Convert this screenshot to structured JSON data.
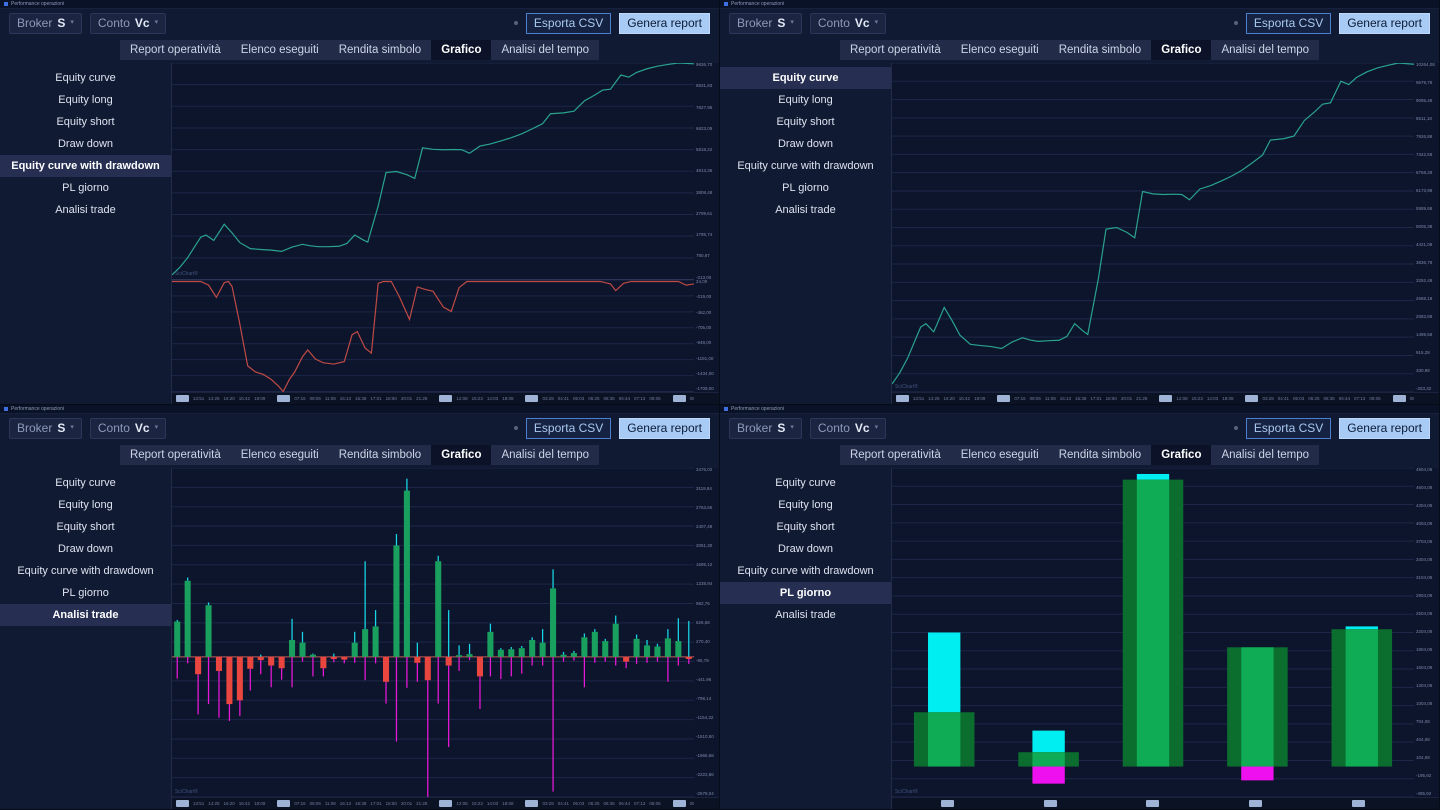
{
  "shared": {
    "window_title": "Performance operazioni",
    "watermark": "SciChart®",
    "toolbar": {
      "broker_label": "Broker",
      "broker_value": "S",
      "conto_label": "Conto",
      "conto_value": "Vc",
      "esporta_csv": "Esporta CSV",
      "genera_report": "Genera report"
    },
    "tabs": [
      "Report operatività",
      "Elenco eseguiti",
      "Rendita simbolo",
      "Grafico",
      "Analisi del tempo"
    ],
    "active_tab": "Grafico",
    "sidebar_items": [
      "Equity curve",
      "Equity long",
      "Equity short",
      "Draw down",
      "Equity curve with drawdown",
      "PL giorno",
      "Analisi trade"
    ],
    "xaxis_groups": [
      {
        "times": [
          "13:51",
          "14:25",
          "16:20",
          "16:42",
          "18:09"
        ]
      },
      {
        "times": [
          "07:16",
          "08:06",
          "11:08",
          "16:13",
          "16:38",
          "17:01",
          "18:50",
          "20:01",
          "21:28"
        ]
      },
      {
        "times": [
          "12:08",
          "15:23",
          "14:03",
          "18:08"
        ]
      },
      {
        "times": [
          "03:28",
          "04:41",
          "06:03",
          "06:25",
          "06:36",
          "06:44",
          "07:13",
          "08:06"
        ]
      },
      {
        "times": [
          "05:45",
          "06:16",
          "06:20",
          "06:11",
          "07:11",
          "07:44",
          "06:08",
          "08:20",
          "08:43",
          "09:00",
          "09:04"
        ]
      }
    ]
  },
  "quadrants": [
    {
      "selected_item": "Equity curve with drawdown"
    },
    {
      "selected_item": "Equity curve"
    },
    {
      "selected_item": "Analisi trade"
    },
    {
      "selected_item": "PL giorno"
    }
  ],
  "chart_data": [
    {
      "type": "line",
      "title": "Equity curve with drawdown",
      "xaxis": "groups",
      "panels": [
        {
          "name": "equity",
          "height": 0.66,
          "color": "#2aa38f",
          "ylim": [
            -213,
            9837
          ],
          "yticks": [
            "9836,70",
            "8831,83",
            "7827,96",
            "6823,09",
            "5818,22",
            "4813,35",
            "3808,48",
            "2799,61",
            "1795,74",
            "790,87",
            "-213,00"
          ],
          "points": [
            [
              0,
              0
            ],
            [
              1.5,
              350
            ],
            [
              3,
              800
            ],
            [
              5.5,
              1750
            ],
            [
              6.5,
              1850
            ],
            [
              8,
              1600
            ],
            [
              10,
              2350
            ],
            [
              11.5,
              1950
            ],
            [
              13,
              1500
            ],
            [
              15,
              1220
            ],
            [
              17,
              1180
            ],
            [
              19,
              1150
            ],
            [
              21,
              1090
            ],
            [
              23,
              1290
            ],
            [
              25,
              1420
            ],
            [
              26.5,
              1350
            ],
            [
              28,
              1310
            ],
            [
              30,
              1310
            ],
            [
              32,
              1330
            ],
            [
              33.5,
              1460
            ],
            [
              35,
              1850
            ],
            [
              36.5,
              1640
            ],
            [
              37.5,
              1520
            ],
            [
              39.5,
              3200
            ],
            [
              41,
              4750
            ],
            [
              43,
              4800
            ],
            [
              45,
              4650
            ],
            [
              46.5,
              4480
            ],
            [
              48,
              5900
            ],
            [
              50,
              5830
            ],
            [
              52,
              5810
            ],
            [
              54,
              5820
            ],
            [
              55.5,
              5810
            ],
            [
              57,
              5650
            ],
            [
              59,
              5980
            ],
            [
              61,
              6080
            ],
            [
              63,
              6220
            ],
            [
              65,
              6370
            ],
            [
              67,
              6550
            ],
            [
              69,
              6780
            ],
            [
              71,
              7020
            ],
            [
              72.5,
              7480
            ],
            [
              75,
              7520
            ],
            [
              77,
              7600
            ],
            [
              79,
              8080
            ],
            [
              81,
              8350
            ],
            [
              82.5,
              8580
            ],
            [
              84,
              8620
            ],
            [
              86,
              9280
            ],
            [
              87.5,
              9180
            ],
            [
              89,
              9400
            ],
            [
              91,
              9570
            ],
            [
              93,
              9690
            ],
            [
              95,
              9770
            ],
            [
              97,
              9837
            ],
            [
              100,
              9800
            ]
          ]
        },
        {
          "name": "drawdown",
          "height": 0.34,
          "color": "#bf4a45",
          "ylim": [
            -1799,
            24
          ],
          "yticks": [
            "24,00",
            "-219,00",
            "-462,00",
            "-705,00",
            "-948,00",
            "-1191,00",
            "-1434,00",
            "-1709,00"
          ],
          "points": [
            [
              0,
              0
            ],
            [
              5.5,
              0
            ],
            [
              7,
              -60
            ],
            [
              8.5,
              -260
            ],
            [
              10,
              -20
            ],
            [
              10.8,
              0
            ],
            [
              11.5,
              -80
            ],
            [
              13,
              -700
            ],
            [
              14.5,
              -1380
            ],
            [
              16,
              -1480
            ],
            [
              17.5,
              -1520
            ],
            [
              19,
              -1600
            ],
            [
              20.5,
              -1720
            ],
            [
              21.3,
              -1799
            ],
            [
              22.5,
              -1600
            ],
            [
              23.5,
              -1480
            ],
            [
              25,
              -1230
            ],
            [
              26,
              -1120
            ],
            [
              27.5,
              -1270
            ],
            [
              29,
              -1330
            ],
            [
              31,
              -1350
            ],
            [
              33,
              -1310
            ],
            [
              34.5,
              -870
            ],
            [
              35.5,
              -820
            ],
            [
              37,
              -1090
            ],
            [
              38.2,
              -1170
            ],
            [
              39.5,
              -30
            ],
            [
              40.5,
              0
            ],
            [
              42,
              0
            ],
            [
              43.5,
              -240
            ],
            [
              45.5,
              -620
            ],
            [
              47,
              -90
            ],
            [
              48.5,
              -130
            ],
            [
              50,
              -160
            ],
            [
              52,
              -420
            ],
            [
              53.5,
              -490
            ],
            [
              55,
              -100
            ],
            [
              56.5,
              0
            ],
            [
              58,
              0
            ],
            [
              82,
              0
            ],
            [
              84,
              -40
            ],
            [
              85,
              -150
            ],
            [
              86.5,
              -30
            ],
            [
              88,
              0
            ],
            [
              97,
              0
            ],
            [
              98.5,
              -60
            ],
            [
              100,
              -40
            ]
          ]
        }
      ]
    },
    {
      "type": "line",
      "title": "Equity curve",
      "xaxis": "groups",
      "panels": [
        {
          "name": "equity",
          "height": 1,
          "color": "#2aa38f",
          "ylim": [
            -253,
            10264
          ],
          "yticks": [
            "10264,08",
            "9679,78",
            "9095,48",
            "8511,18",
            "7926,88",
            "7342,58",
            "6758,28",
            "6173,98",
            "5589,68",
            "5005,38",
            "4421,08",
            "3836,78",
            "3252,48",
            "2668,18",
            "2083,88",
            "1499,58",
            "915,28",
            "330,98",
            "-253,32"
          ],
          "points": [
            [
              0,
              0
            ],
            [
              1.5,
              365
            ],
            [
              3,
              834
            ],
            [
              5.5,
              1825
            ],
            [
              6.5,
              1930
            ],
            [
              8,
              1669
            ],
            [
              10,
              2451
            ],
            [
              11.5,
              2034
            ],
            [
              13,
              1565
            ],
            [
              15,
              1272
            ],
            [
              17,
              1231
            ],
            [
              19,
              1199
            ],
            [
              21,
              1137
            ],
            [
              23,
              1345
            ],
            [
              25,
              1481
            ],
            [
              26.5,
              1408
            ],
            [
              28,
              1366
            ],
            [
              30,
              1387
            ],
            [
              32,
              1400
            ],
            [
              33.5,
              1523
            ],
            [
              35,
              1930
            ],
            [
              36.5,
              1711
            ],
            [
              37.5,
              1585
            ],
            [
              39.5,
              3338
            ],
            [
              41,
              4954
            ],
            [
              43,
              5006
            ],
            [
              45,
              4850
            ],
            [
              46.5,
              4673
            ],
            [
              48,
              6154
            ],
            [
              50,
              6081
            ],
            [
              52,
              6060
            ],
            [
              54,
              6070
            ],
            [
              55.5,
              6060
            ],
            [
              57,
              5893
            ],
            [
              59,
              6237
            ],
            [
              61,
              6341
            ],
            [
              63,
              6487
            ],
            [
              65,
              6644
            ],
            [
              67,
              6832
            ],
            [
              69,
              7072
            ],
            [
              71,
              7322
            ],
            [
              72.5,
              7802
            ],
            [
              75,
              7843
            ],
            [
              77,
              7927
            ],
            [
              79,
              8427
            ],
            [
              81,
              8709
            ],
            [
              82.5,
              8949
            ],
            [
              84,
              8991
            ],
            [
              86,
              9679
            ],
            [
              87.5,
              9575
            ],
            [
              89,
              9804
            ],
            [
              91,
              9981
            ],
            [
              93,
              10107
            ],
            [
              95,
              10190
            ],
            [
              97,
              10264
            ],
            [
              100,
              10225
            ]
          ]
        }
      ]
    },
    {
      "type": "trade-bars",
      "title": "Analisi trade",
      "xaxis": "groups",
      "up_color": "#1aa05e",
      "down_color": "#e8463f",
      "wick_up_color": "#17d8e8",
      "wick_down_color": "#e818d8",
      "zero_line_color": "#c05a55",
      "ylim": [
        -2580,
        3476
      ],
      "yticks": [
        "3476,02",
        "3119,84",
        "2763,66",
        "2407,48",
        "2051,30",
        "1695,12",
        "1338,94",
        "982,76",
        "626,58",
        "270,40",
        "-85,78",
        "-441,96",
        "-798,14",
        "-1154,32",
        "-1510,50",
        "-1866,68",
        "-2222,86",
        "-2579,04"
      ],
      "bars": [
        [
          650,
          680,
          -400
        ],
        [
          1400,
          1460,
          -120
        ],
        [
          -320,
          0,
          -1060
        ],
        [
          950,
          1000,
          -870
        ],
        [
          -260,
          0,
          -1120
        ],
        [
          -870,
          0,
          -1180
        ],
        [
          -800,
          0,
          -1090
        ],
        [
          -220,
          0,
          -620
        ],
        [
          -60,
          40,
          -320
        ],
        [
          -160,
          0,
          -560
        ],
        [
          -210,
          0,
          -420
        ],
        [
          310,
          700,
          -560
        ],
        [
          260,
          460,
          -90
        ],
        [
          40,
          60,
          -360
        ],
        [
          -210,
          0,
          -360
        ],
        [
          -40,
          60,
          -100
        ],
        [
          -50,
          0,
          -120
        ],
        [
          260,
          460,
          -110
        ],
        [
          510,
          1760,
          -430
        ],
        [
          560,
          860,
          -120
        ],
        [
          -460,
          0,
          -860
        ],
        [
          2050,
          2260,
          -1560
        ],
        [
          3060,
          3280,
          -570
        ],
        [
          -110,
          260,
          -460
        ],
        [
          -430,
          0,
          -3060
        ],
        [
          1760,
          1860,
          -860
        ],
        [
          -160,
          860,
          -1660
        ],
        [
          30,
          210,
          -260
        ],
        [
          50,
          240,
          -60
        ],
        [
          -360,
          0,
          -960
        ],
        [
          460,
          610,
          -360
        ],
        [
          130,
          160,
          -410
        ],
        [
          140,
          180,
          -360
        ],
        [
          160,
          200,
          -310
        ],
        [
          310,
          360,
          -160
        ],
        [
          260,
          510,
          -160
        ],
        [
          1260,
          1610,
          -2480
        ],
        [
          40,
          90,
          -90
        ],
        [
          70,
          110,
          -70
        ],
        [
          360,
          430,
          -560
        ],
        [
          460,
          510,
          -110
        ],
        [
          290,
          330,
          -90
        ],
        [
          610,
          760,
          -160
        ],
        [
          -90,
          0,
          -210
        ],
        [
          330,
          410,
          -130
        ],
        [
          210,
          310,
          -110
        ],
        [
          190,
          240,
          -90
        ],
        [
          340,
          510,
          -460
        ],
        [
          290,
          710,
          -160
        ],
        [
          -40,
          660,
          -130
        ]
      ]
    },
    {
      "type": "daily-bars",
      "title": "PL giorno",
      "xaxis": "boxes",
      "xboxes": 5,
      "outer_color": "#0b6d2e",
      "inner_color": "#10ab55",
      "high_color": "#00eef2",
      "low_color": "#ee10ee",
      "ylim": [
        -500,
        4900
      ],
      "yticks": [
        "4904,08",
        "4604,08",
        "4304,08",
        "4004,08",
        "3704,08",
        "3404,08",
        "3104,08",
        "2804,08",
        "2504,08",
        "2204,08",
        "1904,08",
        "1604,08",
        "1304,08",
        "1004,08",
        "704,08",
        "404,08",
        "104,08",
        "-195,92",
        "-495,92"
      ],
      "days": [
        {
          "v": 891,
          "hi": 2200,
          "lo": 0
        },
        {
          "v": 235,
          "hi": 590,
          "lo": -281
        },
        {
          "v": 4709,
          "hi": 4802,
          "lo": 0
        },
        {
          "v": 1957,
          "hi": 1957,
          "lo": -227
        },
        {
          "v": 2254,
          "hi": 2300,
          "lo": 0
        }
      ]
    }
  ]
}
